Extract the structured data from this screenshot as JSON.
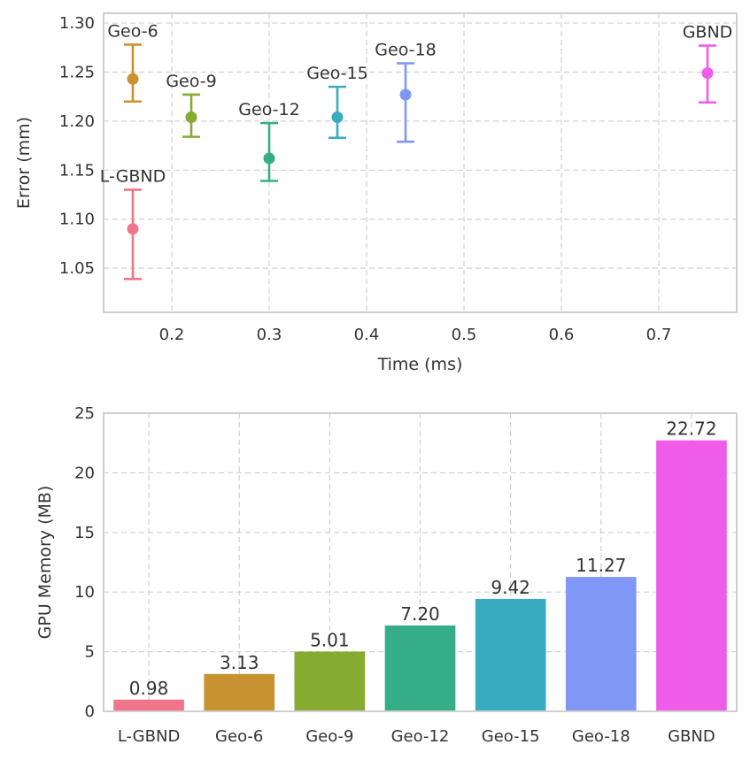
{
  "chart_data": [
    {
      "type": "scatter",
      "xlabel": "Time (ms)",
      "ylabel": "Error (mm)",
      "xlim": [
        0.13,
        0.78
      ],
      "ylim": [
        1.005,
        1.31
      ],
      "xticks": [
        "0.2",
        "0.3",
        "0.4",
        "0.5",
        "0.6",
        "0.7"
      ],
      "yticks": [
        "1.05",
        "1.10",
        "1.15",
        "1.20",
        "1.25",
        "1.30"
      ],
      "grid": true,
      "points": [
        {
          "name": "L-GBND",
          "x": 0.16,
          "y": 1.09,
          "err_low": 1.039,
          "err_high": 1.13,
          "color": "#f0758a"
        },
        {
          "name": "Geo-6",
          "x": 0.16,
          "y": 1.243,
          "err_low": 1.22,
          "err_high": 1.278,
          "color": "#c7922f"
        },
        {
          "name": "Geo-9",
          "x": 0.22,
          "y": 1.204,
          "err_low": 1.184,
          "err_high": 1.227,
          "color": "#85ab33"
        },
        {
          "name": "Geo-12",
          "x": 0.3,
          "y": 1.162,
          "err_low": 1.139,
          "err_high": 1.198,
          "color": "#35ae88"
        },
        {
          "name": "Geo-15",
          "x": 0.37,
          "y": 1.204,
          "err_low": 1.183,
          "err_high": 1.235,
          "color": "#37abbf"
        },
        {
          "name": "Geo-18",
          "x": 0.44,
          "y": 1.227,
          "err_low": 1.179,
          "err_high": 1.259,
          "color": "#8097f5"
        },
        {
          "name": "GBND",
          "x": 0.75,
          "y": 1.249,
          "err_low": 1.219,
          "err_high": 1.277,
          "color": "#f05cea"
        }
      ]
    },
    {
      "type": "bar",
      "xlabel": "",
      "ylabel": "GPU Memory (MB)",
      "ylim": [
        0,
        25
      ],
      "yticks": [
        "0",
        "5",
        "10",
        "15",
        "20",
        "25"
      ],
      "grid": true,
      "categories": [
        "L-GBND",
        "Geo-6",
        "Geo-9",
        "Geo-12",
        "Geo-15",
        "Geo-18",
        "GBND"
      ],
      "values": [
        0.98,
        3.13,
        5.01,
        7.2,
        9.42,
        11.27,
        22.72
      ],
      "value_labels": [
        "0.98",
        "3.13",
        "5.01",
        "7.20",
        "9.42",
        "11.27",
        "22.72"
      ],
      "colors": [
        "#f0758a",
        "#c7922f",
        "#85ab33",
        "#35ae88",
        "#37abbf",
        "#8097f5",
        "#f05cea"
      ]
    }
  ]
}
